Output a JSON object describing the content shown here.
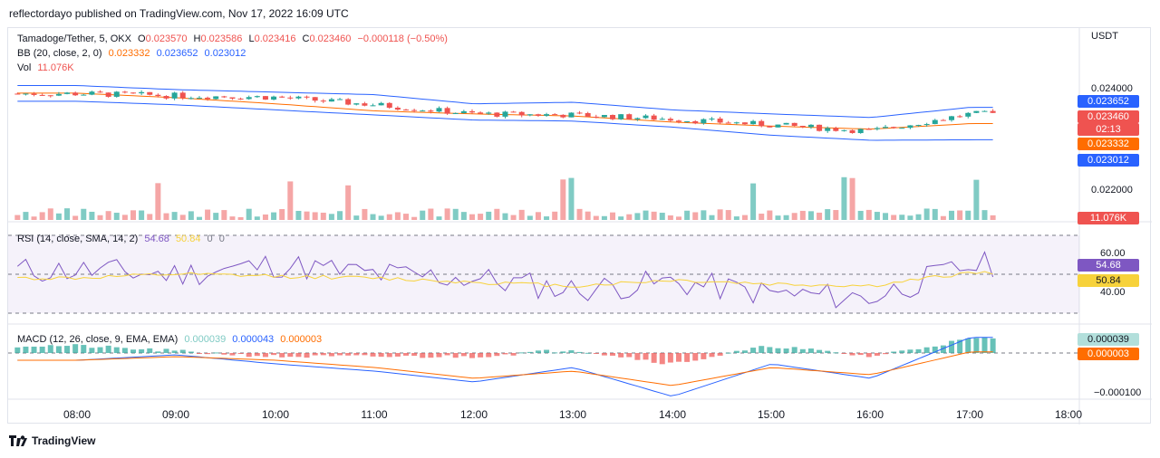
{
  "header": {
    "published": "reflectordayo published on TradingView.com, Nov 17, 2022 16:09 UTC"
  },
  "legend": {
    "symbol": "Tamadoge/Tether, 5, OKX",
    "o_label": "O",
    "o_val": "0.023570",
    "h_label": "H",
    "h_val": "0.023586",
    "l_label": "L",
    "l_val": "0.023416",
    "c_label": "C",
    "c_val": "0.023460",
    "change": "−0.000118 (−0.50%)",
    "bb_label": "BB (20, close, 2, 0)",
    "bb_basis": "0.023332",
    "bb_upper": "0.023652",
    "bb_lower": "0.023012",
    "vol_label": "Vol",
    "vol_val": "11.076K",
    "rsi_label": "RSI (14, close, SMA, 14, 2)",
    "rsi_val": "54.68",
    "rsi_ma": "50.84",
    "rsi_z1": "0",
    "rsi_z2": "0",
    "macd_label": "MACD (12, 26, close, 9, EMA, EMA)",
    "macd_hist": "0.000039",
    "macd_line": "0.000043",
    "macd_signal": "0.000003"
  },
  "price_axis": {
    "currency": "USDT",
    "tick_024": "0.024000",
    "tick_022": "0.022000",
    "box_upper": "0.023652",
    "box_close": "0.023460",
    "box_timer": "02:13",
    "box_basis": "0.023332",
    "box_lower": "0.023012",
    "box_vol": "11.076K"
  },
  "rsi_axis": {
    "tick_60": "60.00",
    "tick_40": "40.00",
    "box_rsi": "54.68",
    "box_ma": "50.84"
  },
  "macd_axis": {
    "tick_neg": "−0.000100",
    "box_hist": "0.000039",
    "box_signal": "0.000003"
  },
  "time_axis": [
    "08:00",
    "09:00",
    "10:00",
    "11:00",
    "12:00",
    "13:00",
    "14:00",
    "15:00",
    "16:00",
    "17:00",
    "18:00"
  ],
  "footer": {
    "brand": "TradingView"
  },
  "colors": {
    "up": "#26a69a",
    "down": "#ef5350",
    "bb": "#2962ff",
    "basis": "#ff6d00",
    "rsi": "#7e57c2",
    "rsi_ma": "#f7d23b",
    "macd": "#2962ff",
    "signal": "#ff6d00"
  },
  "chart_data": [
    {
      "type": "candlestick",
      "title": "Tamadoge/Tether, 5, OKX",
      "ylabel": "USDT",
      "x": [
        "08:00",
        "09:00",
        "10:00",
        "11:00",
        "12:00",
        "13:00",
        "14:00",
        "15:00",
        "16:00",
        "17:00"
      ],
      "y_ticks": [
        0.022,
        0.024
      ],
      "series": [
        {
          "name": "BB upper",
          "values": [
            0.02408,
            0.024,
            0.02395,
            0.0239,
            0.02372,
            0.02375,
            0.0236,
            0.02352,
            0.02345,
            0.02365
          ]
        },
        {
          "name": "BB basis",
          "values": [
            0.02393,
            0.02384,
            0.02372,
            0.02358,
            0.02352,
            0.02348,
            0.02336,
            0.02328,
            0.02322,
            0.02333
          ]
        },
        {
          "name": "BB lower",
          "values": [
            0.02377,
            0.0237,
            0.0236,
            0.0235,
            0.0234,
            0.02338,
            0.02326,
            0.0231,
            0.023,
            0.02301
          ]
        },
        {
          "name": "Close",
          "values": [
            0.02392,
            0.02388,
            0.02385,
            0.0237,
            0.02352,
            0.0235,
            0.02342,
            0.0233,
            0.02318,
            0.02352
          ]
        }
      ]
    },
    {
      "type": "line",
      "title": "RSI (14, close, SMA, 14, 2)",
      "y_ticks": [
        40,
        60
      ],
      "series": [
        {
          "name": "RSI",
          "values": [
            52,
            50,
            55,
            50,
            48,
            42,
            46,
            40,
            38,
            54.68
          ]
        },
        {
          "name": "RSI MA",
          "values": [
            48,
            50,
            49,
            48,
            46,
            44,
            47,
            45,
            44,
            50.84
          ]
        }
      ]
    },
    {
      "type": "line",
      "title": "MACD (12, 26, close, 9, EMA, EMA)",
      "y_ticks": [
        -0.0001
      ],
      "series": [
        {
          "name": "MACD",
          "values": [
            -2e-05,
            -5e-06,
            -3e-05,
            -5e-05,
            -8e-05,
            -4e-05,
            -0.00012,
            -3e-05,
            -7e-05,
            4.3e-05
          ]
        },
        {
          "name": "Signal",
          "values": [
            -2e-05,
            -1e-05,
            -2e-05,
            -4e-05,
            -7e-05,
            -5e-05,
            -9e-05,
            -4e-05,
            -6e-05,
            3e-06
          ]
        },
        {
          "name": "Histogram",
          "values": [
            2e-05,
            5e-06,
            -1e-05,
            -1e-05,
            -1e-05,
            1e-05,
            -3e-05,
            2e-05,
            -1e-05,
            3.9e-05
          ]
        }
      ]
    }
  ]
}
